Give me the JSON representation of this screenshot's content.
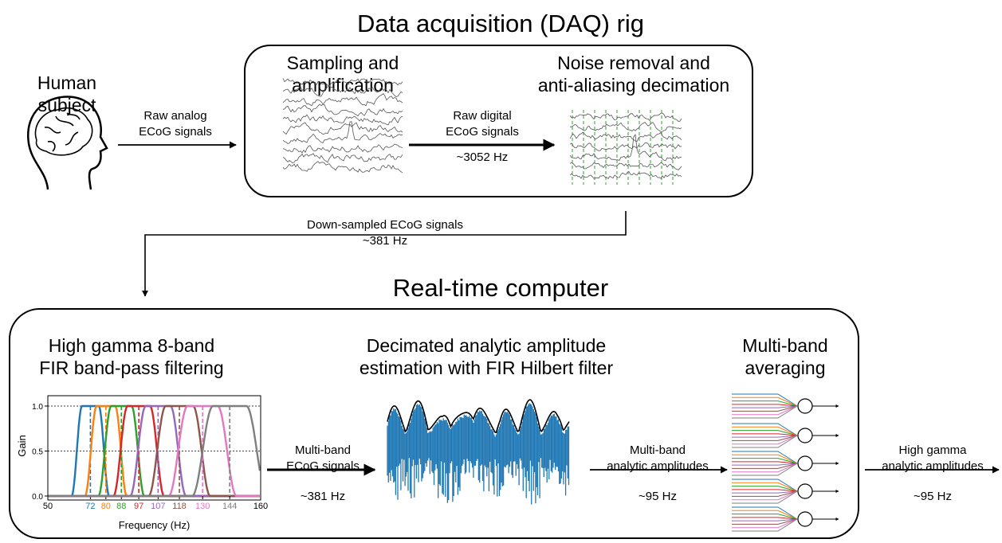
{
  "subject": {
    "label": [
      "Human",
      "subject"
    ],
    "arrow_label": [
      "Raw analog",
      "ECoG signals"
    ]
  },
  "daq": {
    "title": "Data acquisition (DAQ) rig",
    "sampling": [
      "Sampling and",
      "amplification"
    ],
    "noise": [
      "Noise removal and",
      "anti-aliasing decimation"
    ],
    "raw_digital": [
      "Raw digital",
      "ECoG signals"
    ],
    "raw_digital_rate": "~3052 Hz"
  },
  "downsampled": {
    "label": "Down-sampled ECoG signals",
    "rate": "~381 Hz"
  },
  "rtc": {
    "title": "Real-time computer",
    "filtering": [
      "High gamma 8-band",
      "FIR band-pass filtering"
    ],
    "hilbert": [
      "Decimated analytic amplitude",
      "estimation with FIR Hilbert filter"
    ],
    "averaging": [
      "Multi-band",
      "averaging"
    ],
    "multiband": {
      "label": [
        "Multi-band",
        "ECoG signals"
      ],
      "rate": "~381 Hz"
    },
    "amplitudes": {
      "label": [
        "Multi-band",
        "analytic amplitudes"
      ],
      "rate": "~95 Hz"
    },
    "output": {
      "label": [
        "High gamma",
        "analytic amplitudes"
      ],
      "rate": "~95 Hz"
    }
  },
  "inset": {
    "x_label": "Frequency (Hz)",
    "y_label": "Gain",
    "x_ticks": [
      "50",
      "72",
      "80",
      "88",
      "97",
      "107",
      "118",
      "130",
      "144",
      "160"
    ],
    "y_ticks": [
      "0.0",
      "0.5",
      "1.0"
    ]
  }
}
